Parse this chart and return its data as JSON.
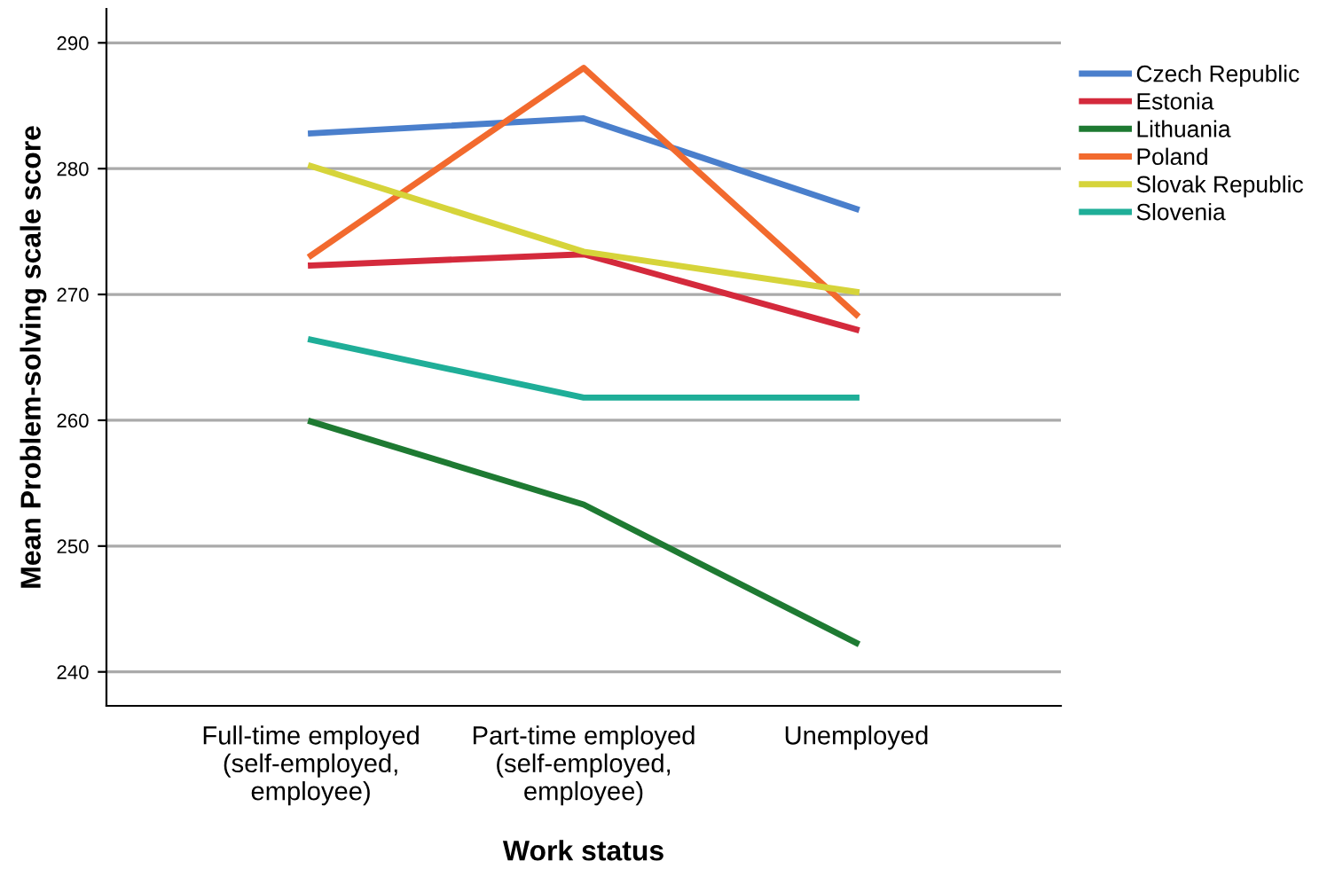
{
  "chart_data": {
    "type": "line",
    "xlabel": "Work status",
    "ylabel": "Mean Problem-solving scale score",
    "categories": [
      "Full-time employed\n(self-employed,\nemployee)",
      "Part-time employed\n(self-employed,\nemployee)",
      "Unemployed"
    ],
    "series": [
      {
        "name": "Czech Republic",
        "color": "#4a7fcc",
        "values": [
          282.8,
          284.0,
          276.8
        ]
      },
      {
        "name": "Estonia",
        "color": "#d42a3c",
        "values": [
          272.3,
          273.2,
          267.2
        ]
      },
      {
        "name": "Lithuania",
        "color": "#1e7a32",
        "values": [
          259.9,
          253.3,
          242.3
        ]
      },
      {
        "name": "Poland",
        "color": "#f26a2e",
        "values": [
          273.1,
          288.0,
          268.4
        ]
      },
      {
        "name": "Slovak Republic",
        "color": "#d6d43a",
        "values": [
          280.2,
          273.4,
          270.2
        ]
      },
      {
        "name": "Slovenia",
        "color": "#1fae98",
        "values": [
          266.4,
          261.8,
          261.8
        ]
      }
    ],
    "ylim": [
      237.3,
      292.7
    ],
    "yticks": [
      240,
      250,
      260,
      270,
      280,
      290
    ],
    "grid": "y",
    "legend": "top right",
    "marker": "none",
    "line_style": "solid"
  }
}
